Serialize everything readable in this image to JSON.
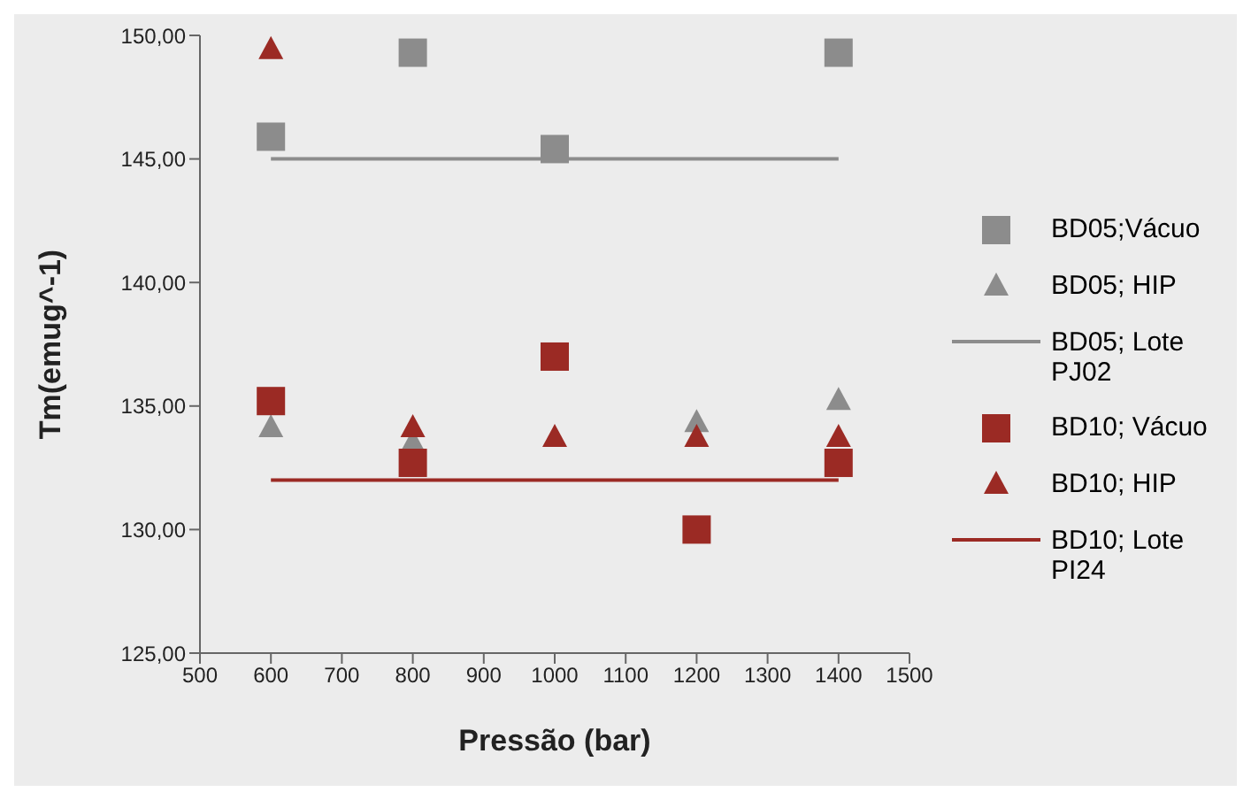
{
  "chart_data": {
    "type": "scatter",
    "xlabel": "Pressão (bar)",
    "ylabel": "Tm(emug^-1)",
    "xlim": [
      500,
      1500
    ],
    "xticks": [
      500,
      600,
      700,
      800,
      900,
      1000,
      1100,
      1200,
      1300,
      1400,
      1500
    ],
    "ylim": [
      125,
      150
    ],
    "yticks": [
      {
        "value": 125,
        "label": "125,00"
      },
      {
        "value": 130,
        "label": "130,00"
      },
      {
        "value": 135,
        "label": "135,00"
      },
      {
        "value": 140,
        "label": "140,00"
      },
      {
        "value": 145,
        "label": "145,00"
      },
      {
        "value": 150,
        "label": "150,00"
      }
    ],
    "grid": false,
    "legend": "right",
    "series": [
      {
        "name": "BD05;Vácuo",
        "marker": "square",
        "color": "#8c8c8c",
        "x": [
          600,
          800,
          1000,
          1400
        ],
        "values": [
          145.9,
          149.3,
          145.4,
          149.3
        ]
      },
      {
        "name": "BD05; HIP",
        "marker": "triangle",
        "color": "#8c8c8c",
        "x": [
          600,
          800,
          1200,
          1400
        ],
        "values": [
          134.1,
          133.5,
          134.3,
          135.2
        ]
      },
      {
        "name": "BD05; Lote PJ02",
        "type": "line",
        "marker": "none",
        "color": "#8c8c8c",
        "x": [
          600,
          1400
        ],
        "values": [
          145,
          145
        ]
      },
      {
        "name": "BD10; Vácuo",
        "marker": "square",
        "color": "#9b2a24",
        "x": [
          600,
          800,
          1000,
          1200,
          1400
        ],
        "values": [
          135.2,
          132.7,
          137.0,
          130.0,
          132.7
        ]
      },
      {
        "name": "BD10; HIP",
        "marker": "triangle",
        "color": "#9b2a24",
        "x": [
          600,
          800,
          1000,
          1200,
          1400
        ],
        "values": [
          149.4,
          134.1,
          133.7,
          133.7,
          133.7
        ]
      },
      {
        "name": "BD10; Lote PI24",
        "type": "line",
        "marker": "none",
        "color": "#9b2a24",
        "x": [
          600,
          1400
        ],
        "values": [
          132,
          132
        ]
      }
    ]
  }
}
